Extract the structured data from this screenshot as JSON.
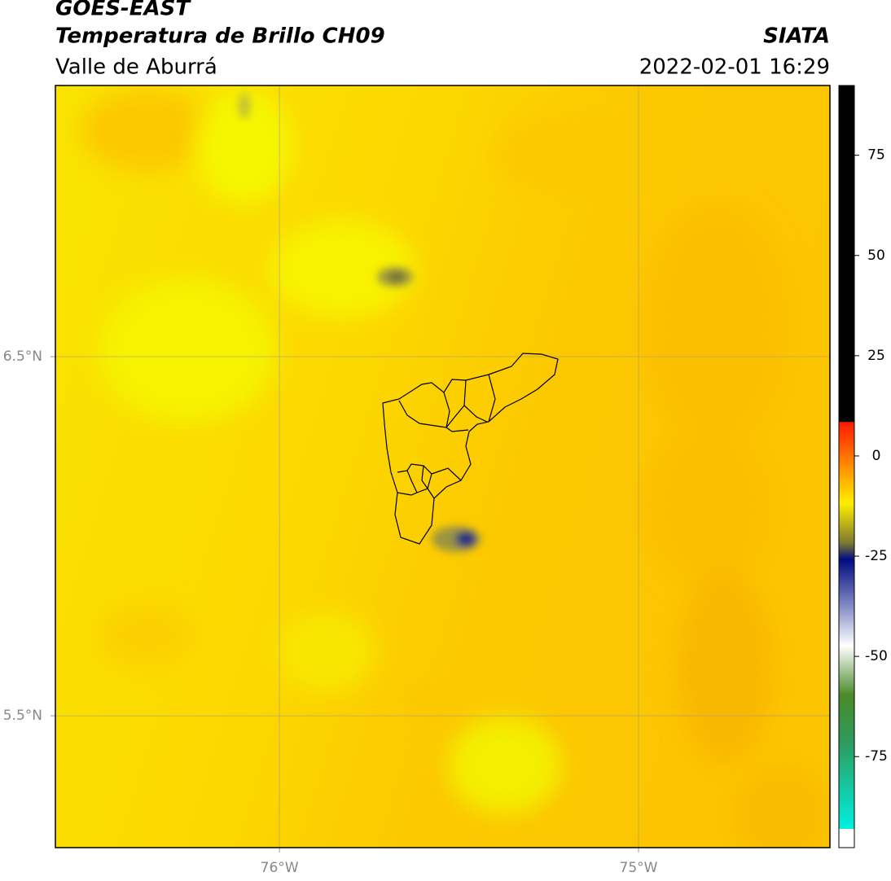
{
  "header": {
    "title": "GOES-EAST",
    "subtitle": "Temperatura de Brillo CH09",
    "region": "Valle de Aburrá",
    "source": "SIATA",
    "timestamp": "2022-02-01 16:29"
  },
  "map": {
    "xlim": [
      -76.624,
      -74.467
    ],
    "ylim": [
      5.133,
      7.255
    ],
    "xticks": [
      {
        "value": -76,
        "label": "76°W"
      },
      {
        "value": -75,
        "label": "75°W"
      }
    ],
    "yticks": [
      {
        "value": 6.5,
        "label": "6.5°N"
      },
      {
        "value": 5.5,
        "label": "5.5°N"
      }
    ],
    "grid": true
  },
  "colorbar": {
    "lim": [
      -97.7,
      92.4
    ],
    "ticks": [
      75,
      50,
      25,
      0,
      -25,
      -50,
      -75
    ]
  }
}
